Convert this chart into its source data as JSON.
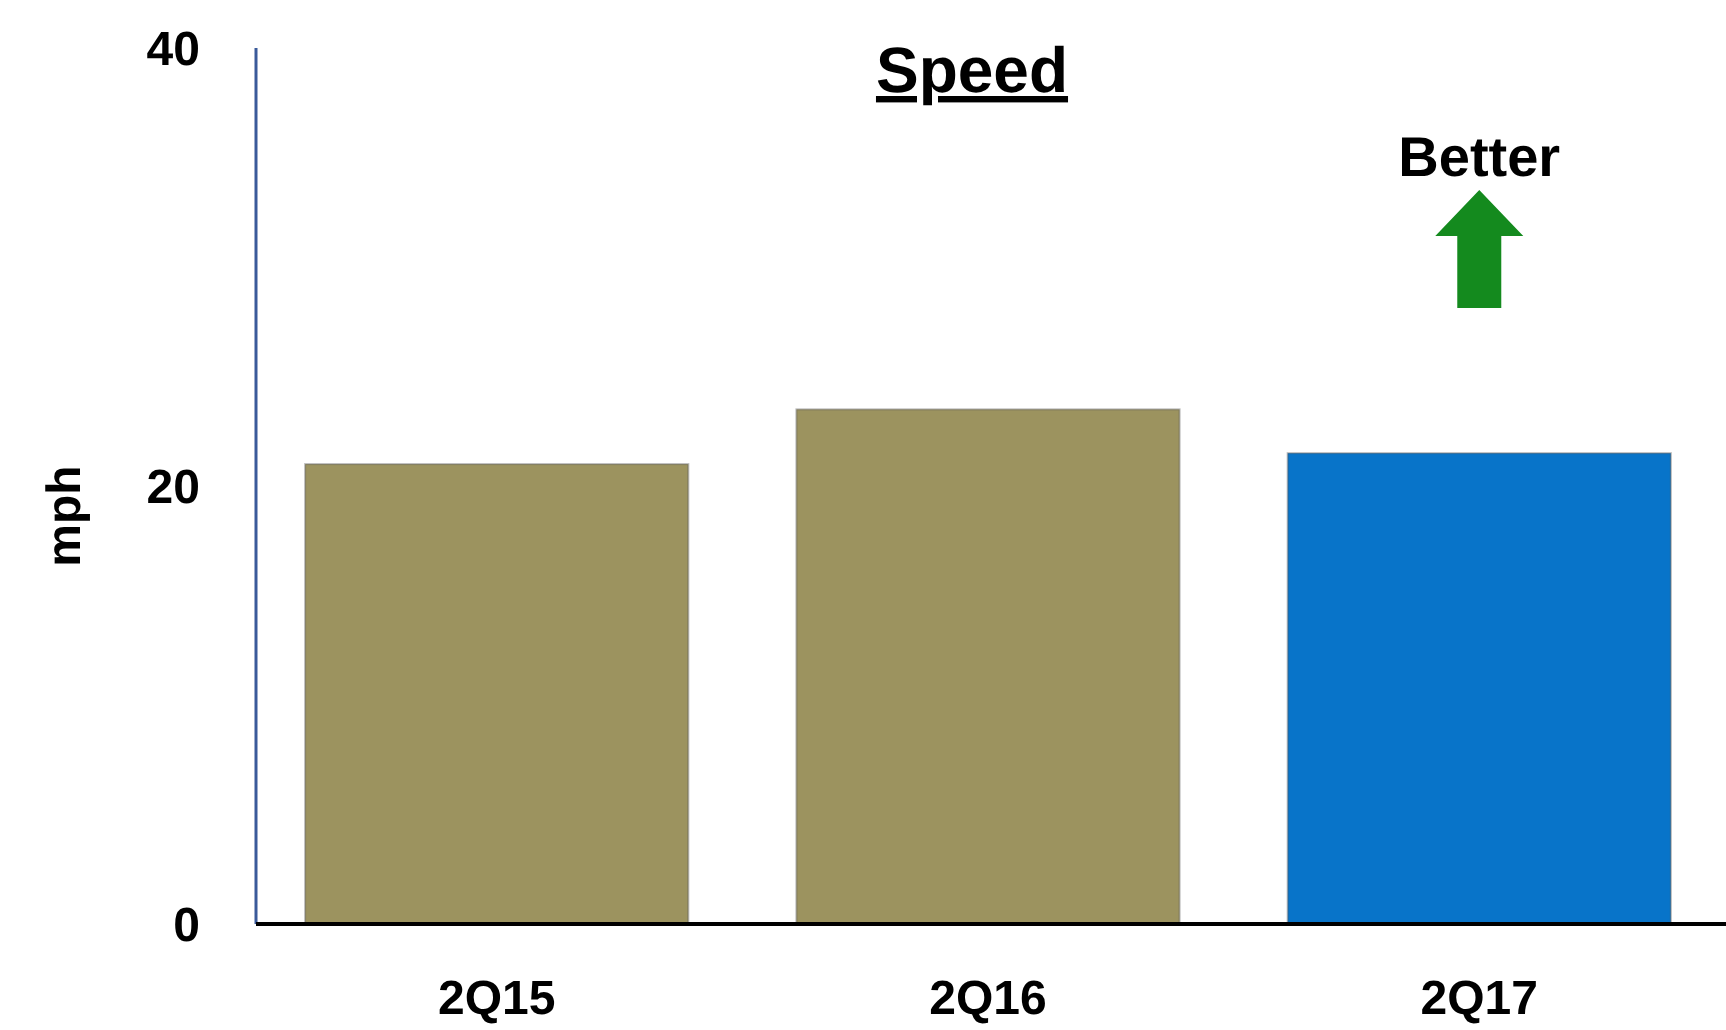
{
  "chart_data": {
    "type": "bar",
    "title": "Speed",
    "ylabel": "mph",
    "categories": [
      "2Q15",
      "2Q16",
      "2Q17"
    ],
    "values": [
      21.0,
      23.5,
      21.5
    ],
    "colors": [
      "#9c935f",
      "#9c935f",
      "#0874c9"
    ],
    "ylim": [
      0,
      40
    ],
    "yticks": [
      0,
      20,
      40
    ],
    "grid": false,
    "annotations": [
      "Better"
    ]
  }
}
